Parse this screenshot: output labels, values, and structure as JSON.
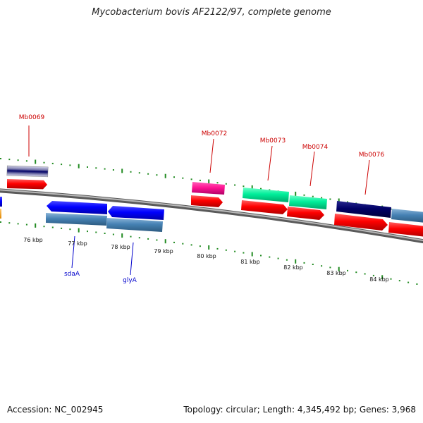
{
  "title": "Mycobacterium bovis AF2122/97, complete genome",
  "footer": {
    "accession": "Accession: NC_002945",
    "summary": "Topology: circular; Length: 4,345,492 bp; Genes: 3,968"
  },
  "colors": {
    "backbone": "#808080",
    "tick": "#228b22",
    "cds_red": "#ff0000",
    "forward_label": "#cc0000",
    "reverse_label": "#0000cc",
    "steelblue": "#4682b4",
    "blue": "#0000ff",
    "navy": "#000066",
    "magenta": "#ff1493",
    "aquamarine": "#00ee9a",
    "orange": "#ffa500"
  },
  "kbp_labels": [
    "76 kbp",
    "77 kbp",
    "78 kbp",
    "79 kbp",
    "80 kbp",
    "81 kbp",
    "82 kbp",
    "83 kbp",
    "84 kbp"
  ],
  "gene_labels": {
    "mb0069": "Mb0069",
    "mb0072": "Mb0072",
    "mb0073": "Mb0073",
    "mb0074": "Mb0074",
    "mb0076": "Mb0076",
    "sdaA": "sdaA",
    "glyA": "glyA"
  }
}
